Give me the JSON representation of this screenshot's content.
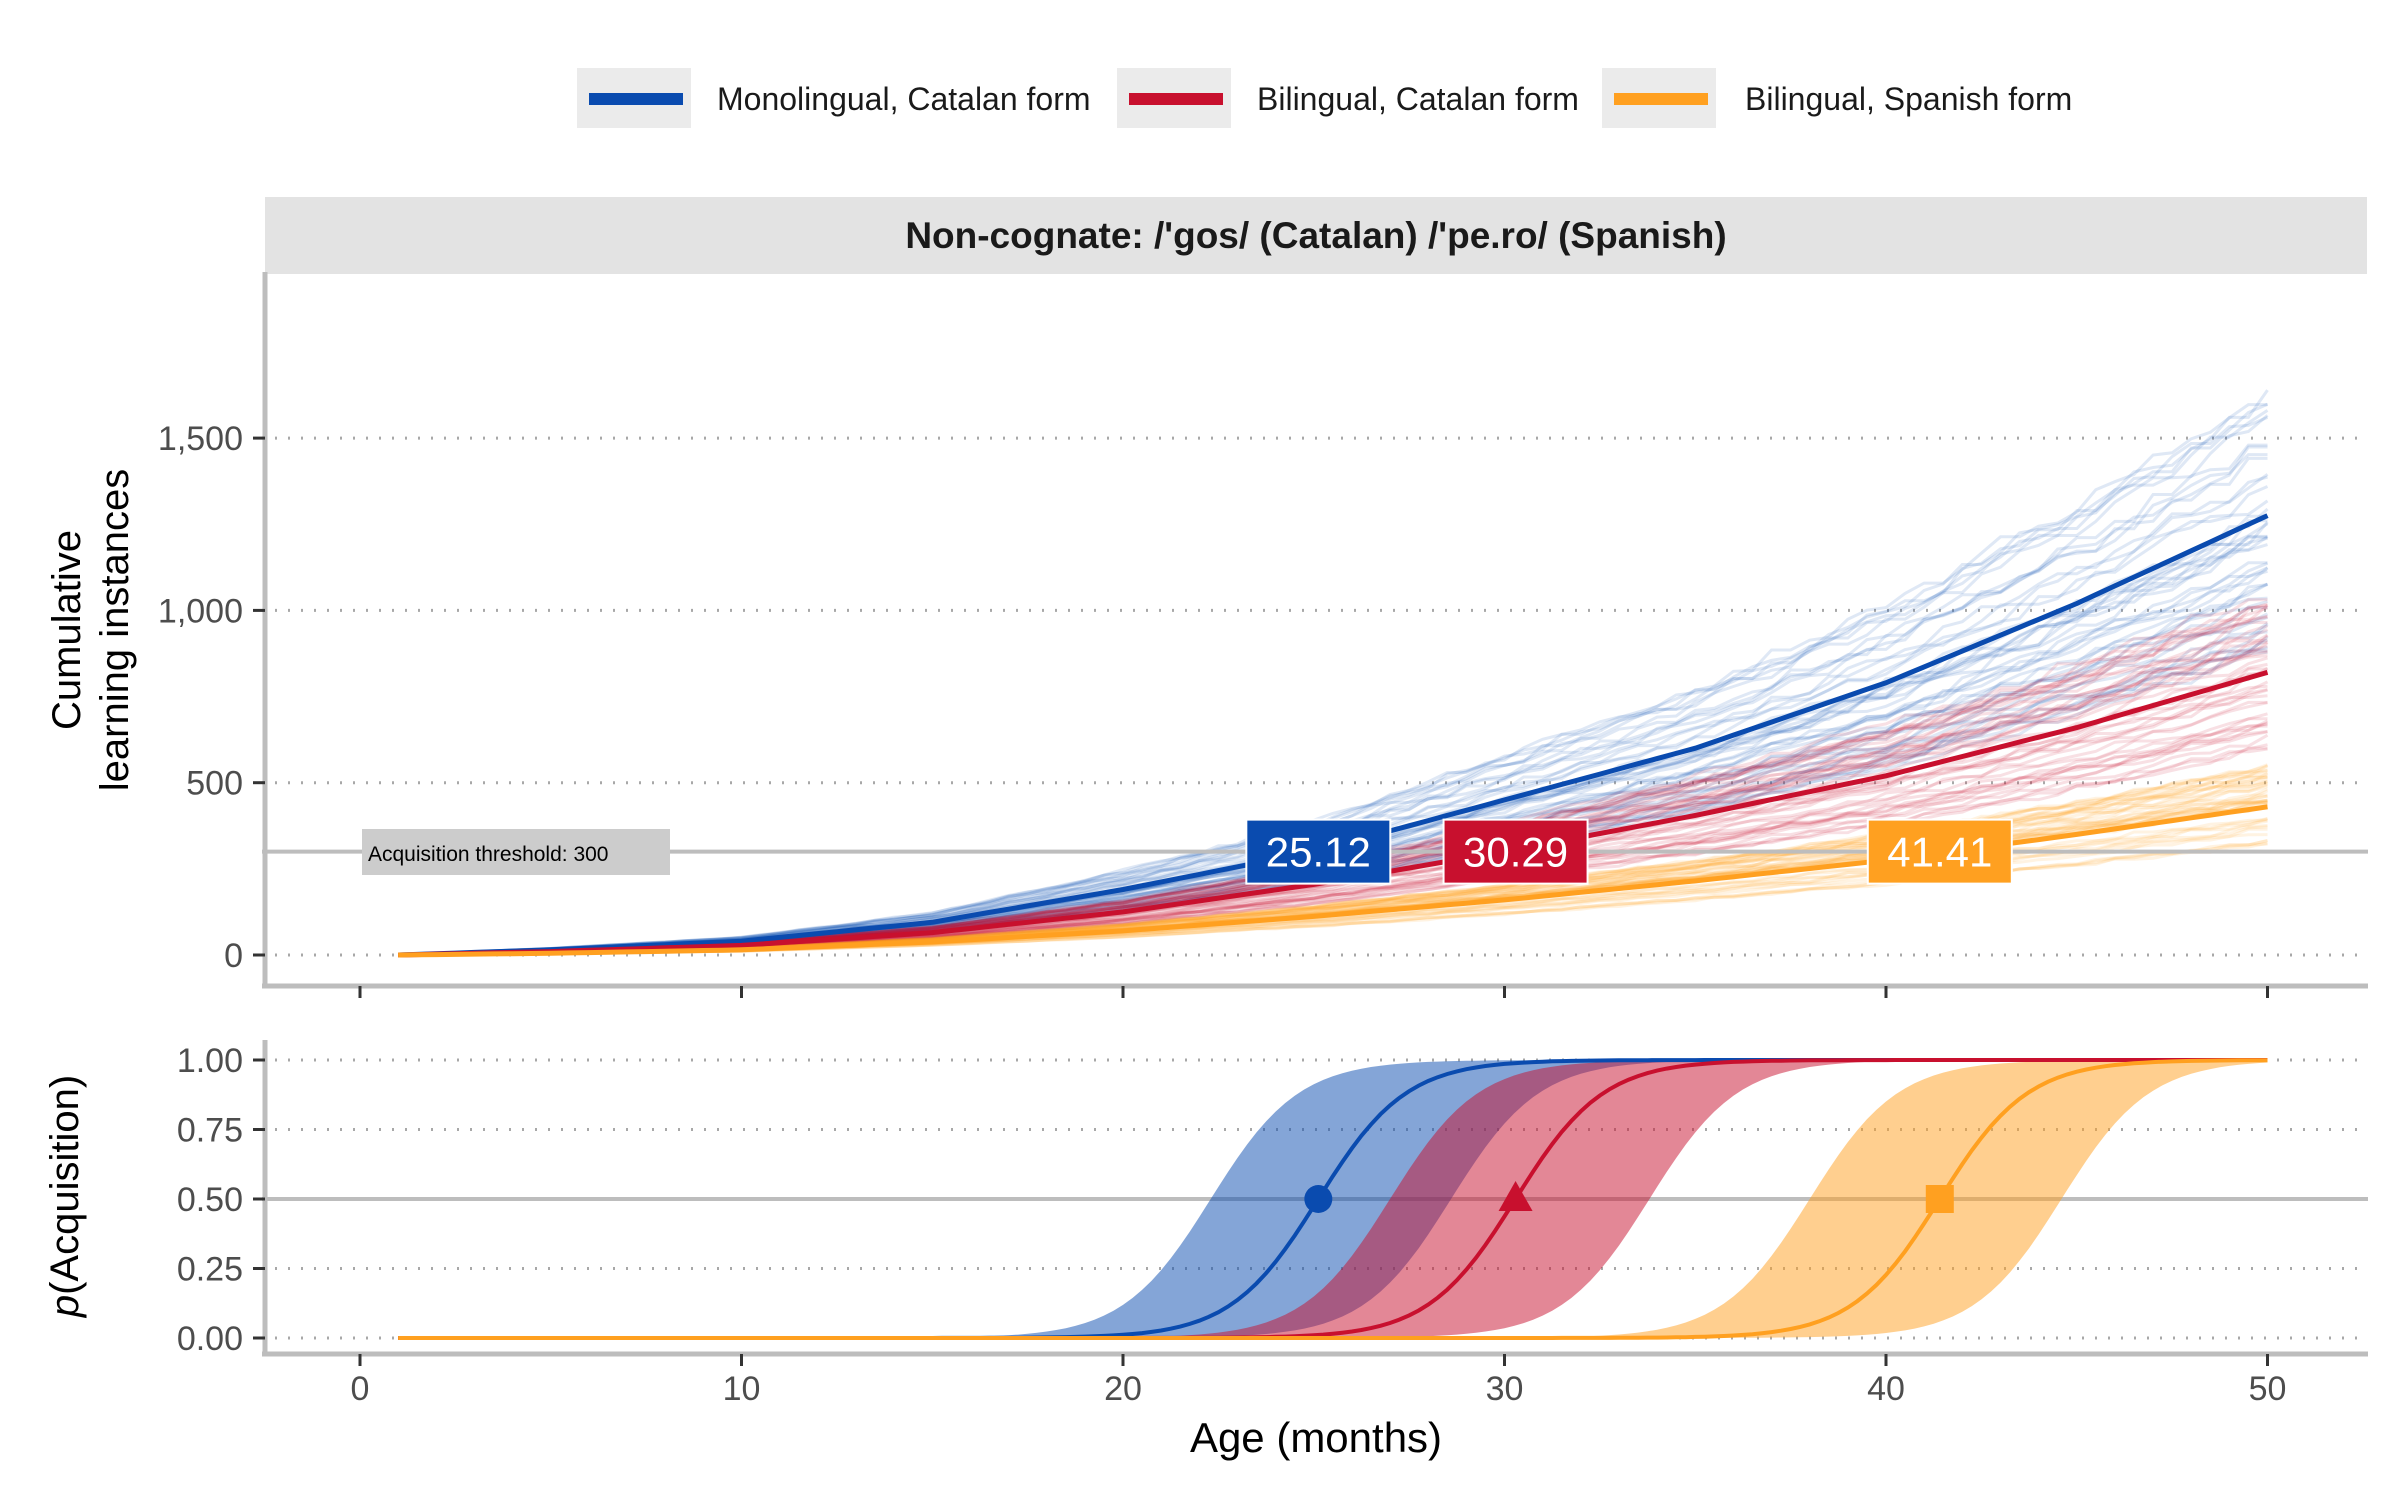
{
  "chart_data": [
    {
      "type": "line",
      "panel": "top",
      "strip_title": "Non-cognate: /'gos/ (Catalan) /'pe.ro/ (Spanish)",
      "ylabel_line1": "Cumulative",
      "ylabel_line2": "learning instances",
      "xlim": [
        1,
        50
      ],
      "ylim": [
        -30,
        1950
      ],
      "yticks": [
        0,
        500,
        1000,
        1500
      ],
      "ytick_labels": [
        "0",
        "500",
        "1,000",
        "1,500"
      ],
      "grid": "horizontal dotted",
      "series": [
        {
          "name": "Monolingual, Catalan form",
          "color": "#0A4BAF",
          "x": [
            1,
            5,
            10,
            15,
            20,
            25,
            30,
            35,
            40,
            45,
            50
          ],
          "values": [
            0,
            15,
            40,
            95,
            190,
            300,
            450,
            600,
            790,
            1020,
            1275
          ]
        },
        {
          "name": "Bilingual, Catalan form",
          "color": "#C8102E",
          "x": [
            1,
            5,
            10,
            15,
            20,
            25,
            30,
            35,
            40,
            45,
            50
          ],
          "values": [
            0,
            10,
            28,
            65,
            125,
            205,
            300,
            405,
            520,
            660,
            820
          ]
        },
        {
          "name": "Bilingual, Spanish form",
          "color": "#FFA020",
          "x": [
            1,
            5,
            10,
            15,
            20,
            25,
            30,
            35,
            40,
            45,
            50
          ],
          "values": [
            0,
            5,
            15,
            38,
            70,
            112,
            160,
            215,
            275,
            350,
            430
          ]
        }
      ],
      "threshold": {
        "value": 300,
        "label": "Acquisition threshold: 300"
      },
      "acquisition_labels": [
        {
          "text": "25.12",
          "x": 25.12,
          "color": "#0A4BAF"
        },
        {
          "text": "30.29",
          "x": 30.29,
          "color": "#C8102E"
        },
        {
          "text": "41.41",
          "x": 41.41,
          "color": "#FFA020"
        }
      ]
    },
    {
      "type": "line",
      "panel": "bottom",
      "ylabel_p": "p",
      "ylabel_rest": "(Acquisition)",
      "xlabel": "Age (months)",
      "xlim": [
        1,
        50
      ],
      "ylim": [
        -0.05,
        1.05
      ],
      "xticks": [
        0,
        10,
        20,
        30,
        40,
        50
      ],
      "xtick_labels": [
        "0",
        "10",
        "20",
        "30",
        "40",
        "50"
      ],
      "yticks": [
        0,
        0.25,
        0.5,
        0.75,
        1
      ],
      "ytick_labels": [
        "0.00",
        "0.25",
        "0.50",
        "0.75",
        "1.00"
      ],
      "grid": "horizontal dotted",
      "reference_line": 0.5,
      "series": [
        {
          "name": "Monolingual, Catalan form",
          "color": "#0A4BAF",
          "midpoint": 25.12,
          "band": [
            22.3,
            28.6
          ],
          "marker": "circle"
        },
        {
          "name": "Bilingual, Catalan form",
          "color": "#C8102E",
          "midpoint": 30.29,
          "band": [
            27.0,
            33.8
          ],
          "marker": "triangle"
        },
        {
          "name": "Bilingual, Spanish form",
          "color": "#FFA020",
          "midpoint": 41.41,
          "band": [
            38.0,
            44.6
          ],
          "marker": "square"
        }
      ]
    }
  ],
  "legend": {
    "placement": "top-center",
    "items": [
      {
        "label": "Monolingual, Catalan form",
        "color": "#0A4BAF"
      },
      {
        "label": "Bilingual, Catalan form",
        "color": "#C8102E"
      },
      {
        "label": "Bilingual, Spanish form",
        "color": "#FFA020"
      }
    ]
  }
}
